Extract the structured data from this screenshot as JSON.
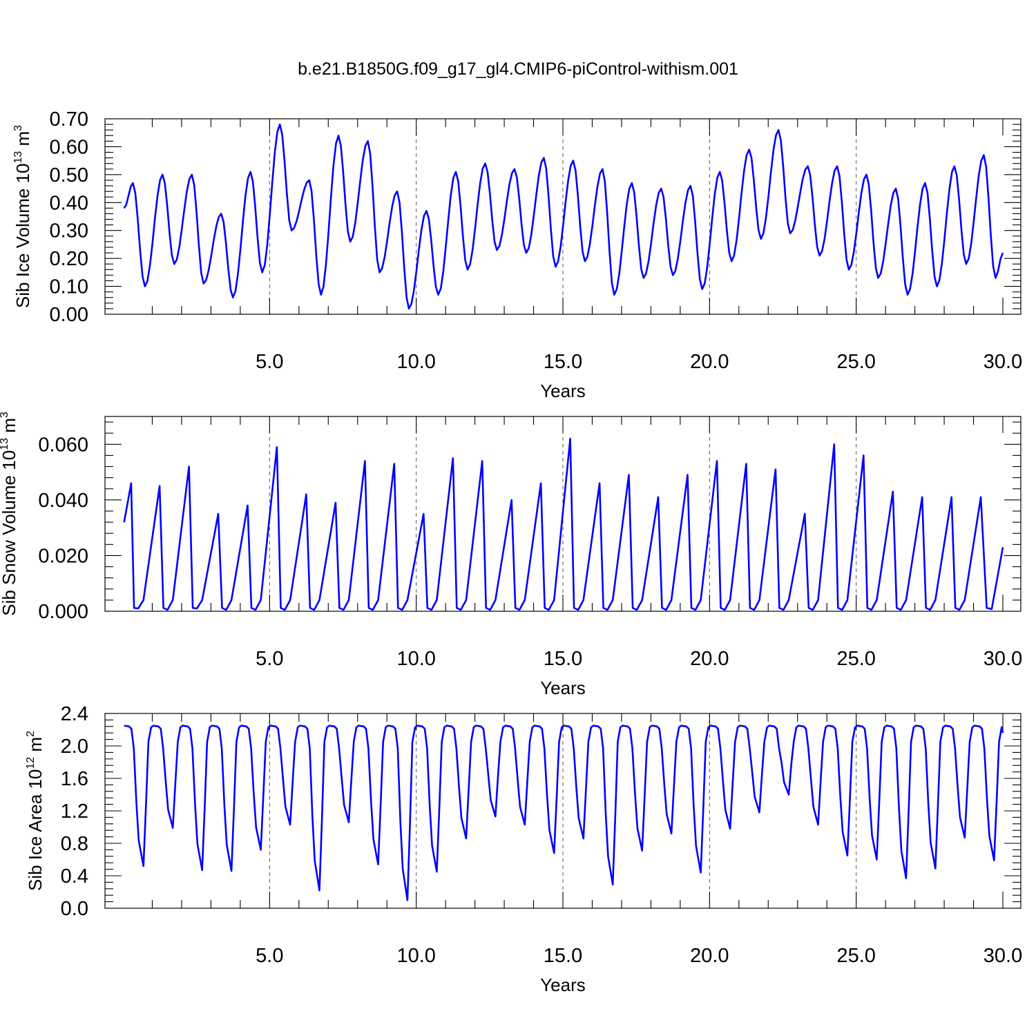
{
  "figure": {
    "title": "b.e21.B1850G.f09_g17_gl4.CMIP6-piControl-withism.001"
  },
  "chart_data": [
    {
      "type": "line",
      "xlabel": "Years",
      "ylabel": "Sib Ice Volume 10",
      "ylabel_exp": "13",
      "ylabel_unit": " m",
      "ylabel_unit_exp": "3",
      "xlim": [
        0.04,
        30.0
      ],
      "ylim": [
        0.0,
        0.7
      ],
      "xticks": [
        5,
        10,
        15,
        20,
        25,
        30
      ],
      "xtick_labels": [
        "5.0",
        "10.0",
        "15.0",
        "20.0",
        "25.0",
        "30.0"
      ],
      "yticks": [
        0.0,
        0.1,
        0.2,
        0.3,
        0.4,
        0.5,
        0.6,
        0.7
      ],
      "ytick_labels": [
        "0.00",
        "0.10",
        "0.20",
        "0.30",
        "0.40",
        "0.50",
        "0.60",
        "0.70"
      ],
      "grid_x": true,
      "series_color": "#0000ff",
      "peaks": [
        0.47,
        0.5,
        0.5,
        0.36,
        0.51,
        0.68,
        0.48,
        0.64,
        0.62,
        0.44,
        0.37,
        0.51,
        0.54,
        0.52,
        0.56,
        0.55,
        0.52,
        0.47,
        0.45,
        0.46,
        0.51,
        0.59,
        0.66,
        0.53,
        0.53,
        0.5,
        0.45,
        0.47,
        0.53,
        0.57
      ],
      "troughs": [
        0.38,
        0.1,
        0.18,
        0.11,
        0.06,
        0.15,
        0.3,
        0.07,
        0.26,
        0.15,
        0.02,
        0.07,
        0.16,
        0.23,
        0.22,
        0.17,
        0.19,
        0.07,
        0.13,
        0.14,
        0.09,
        0.19,
        0.27,
        0.29,
        0.21,
        0.16,
        0.13,
        0.07,
        0.1,
        0.18,
        0.13,
        0.22
      ]
    },
    {
      "type": "line",
      "xlabel": "Years",
      "ylabel": "Sib Snow Volume 10",
      "ylabel_exp": "13",
      "ylabel_unit": " m",
      "ylabel_unit_exp": "3",
      "xlim": [
        0.04,
        30.0
      ],
      "ylim": [
        0.0,
        0.07
      ],
      "xticks": [
        5,
        10,
        15,
        20,
        25,
        30
      ],
      "xtick_labels": [
        "5.0",
        "10.0",
        "15.0",
        "20.0",
        "25.0",
        "30.0"
      ],
      "yticks": [
        0.0,
        0.02,
        0.04,
        0.06
      ],
      "ytick_labels": [
        "0.000",
        "0.020",
        "0.040",
        "0.060"
      ],
      "grid_x": true,
      "series_color": "#0000ff",
      "peaks": [
        0.046,
        0.045,
        0.052,
        0.035,
        0.038,
        0.059,
        0.042,
        0.039,
        0.054,
        0.053,
        0.035,
        0.055,
        0.054,
        0.04,
        0.046,
        0.062,
        0.046,
        0.049,
        0.041,
        0.049,
        0.054,
        0.053,
        0.051,
        0.035,
        0.06,
        0.056,
        0.043,
        0.041,
        0.041,
        0.041
      ],
      "troughs": [
        0.032,
        0.001,
        0.0005,
        0.001,
        0.0005,
        0.0005,
        0.0005,
        0.0005,
        0.0005,
        0.0005,
        0.0005,
        0.0005,
        0.0005,
        0.0005,
        0.0005,
        0.0005,
        0.0005,
        0.0005,
        0.0005,
        0.0005,
        0.0005,
        0.0005,
        0.0005,
        0.0005,
        0.0005,
        0.0005,
        0.0005,
        0.0005,
        0.0005,
        0.0005,
        0.0005,
        0.023
      ]
    },
    {
      "type": "line",
      "xlabel": "Years",
      "ylabel": "Sib Ice Area 10",
      "ylabel_exp": "12",
      "ylabel_unit": " m",
      "ylabel_unit_exp": "2",
      "xlim": [
        0.04,
        30.0
      ],
      "ylim": [
        0.0,
        2.4
      ],
      "xticks": [
        5,
        10,
        15,
        20,
        25,
        30
      ],
      "xtick_labels": [
        "5.0",
        "10.0",
        "15.0",
        "20.0",
        "25.0",
        "30.0"
      ],
      "yticks": [
        0.0,
        0.4,
        0.8,
        1.2,
        1.6,
        2.0,
        2.4
      ],
      "ytick_labels": [
        "0.0",
        "0.4",
        "0.8",
        "1.2",
        "1.6",
        "2.0",
        "2.4"
      ],
      "grid_x": true,
      "series_color": "#0000ff",
      "plateau": 2.25,
      "troughs": [
        0.52,
        0.99,
        0.47,
        0.46,
        0.72,
        1.03,
        0.22,
        1.06,
        0.54,
        0.1,
        0.45,
        0.86,
        1.13,
        1.03,
        0.68,
        0.86,
        0.29,
        0.71,
        0.92,
        0.44,
        0.98,
        1.18,
        1.4,
        1.03,
        0.65,
        0.6,
        0.37,
        0.49,
        0.87,
        0.59
      ]
    }
  ]
}
